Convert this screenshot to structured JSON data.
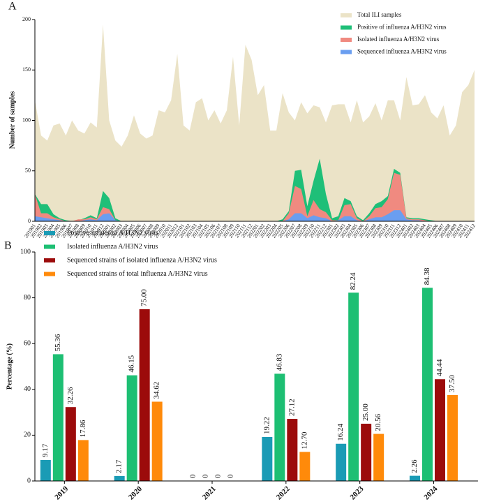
{
  "chart_data": [
    {
      "type": "area",
      "panel_label": "A",
      "y_label": "Number of samples",
      "categories": [
        "201901",
        "201902",
        "201903",
        "201904",
        "201905",
        "201906",
        "201907",
        "201908",
        "201909",
        "201910",
        "201911",
        "201912",
        "202001",
        "202002",
        "202003",
        "202004",
        "202005",
        "202006",
        "202007",
        "202008",
        "202009",
        "202010",
        "202011",
        "202012",
        "202101",
        "202102",
        "202103",
        "202104",
        "202105",
        "202106",
        "202107",
        "202108",
        "202109",
        "202110",
        "202111",
        "202112",
        "202201",
        "202202",
        "202203",
        "202204",
        "202205",
        "202206",
        "202207",
        "202208",
        "202209",
        "202210",
        "202211",
        "202212",
        "202301",
        "202302",
        "202303",
        "202304",
        "202305",
        "202306",
        "202307",
        "202308",
        "202309",
        "202310",
        "202311",
        "202312",
        "202401",
        "202402",
        "202403",
        "202404",
        "202405",
        "202406",
        "202407",
        "202408",
        "202409",
        "202410",
        "202411",
        "202412"
      ],
      "series": [
        {
          "name": "Total ILI samples",
          "color": "#ebe3c7",
          "values": [
            120,
            85,
            80,
            95,
            97,
            85,
            100,
            90,
            87,
            98,
            93,
            195,
            100,
            80,
            74,
            85,
            105,
            87,
            82,
            85,
            110,
            108,
            120,
            166,
            95,
            90,
            118,
            122,
            100,
            110,
            97,
            110,
            163,
            95,
            175,
            160,
            125,
            135,
            90,
            90,
            127,
            108,
            100,
            118,
            107,
            115,
            113,
            98,
            115,
            116,
            116,
            98,
            120,
            98,
            104,
            117,
            100,
            120,
            120,
            100,
            143,
            115,
            116,
            125,
            108,
            102,
            115,
            85,
            95,
            128,
            135,
            150
          ]
        },
        {
          "name": "Positive of influenza A/H3N2 virus",
          "color": "#1fbf78",
          "values": [
            27,
            17,
            17,
            7,
            3,
            1,
            0,
            1,
            3,
            6,
            3,
            30,
            23,
            3,
            0,
            0,
            0,
            0,
            0,
            0,
            0,
            0,
            0,
            0,
            0,
            0,
            0,
            0,
            0,
            0,
            0,
            0,
            0,
            0,
            0,
            0,
            0,
            0,
            0,
            0,
            2,
            10,
            50,
            51,
            15,
            40,
            62,
            27,
            3,
            5,
            23,
            20,
            5,
            1,
            8,
            17,
            20,
            25,
            52,
            48,
            4,
            3,
            3,
            2,
            1,
            0,
            0,
            0,
            0,
            0,
            0,
            0
          ]
        },
        {
          "name": "Isolated influenza A/H3N2 virus",
          "color": "#f08a80",
          "values": [
            27,
            8,
            8,
            4,
            2,
            0,
            0,
            2,
            2,
            4,
            2,
            14,
            12,
            1,
            0,
            0,
            0,
            0,
            0,
            0,
            0,
            0,
            0,
            0,
            0,
            0,
            0,
            0,
            0,
            0,
            0,
            0,
            0,
            0,
            0,
            0,
            0,
            0,
            0,
            0,
            0,
            8,
            35,
            32,
            5,
            21,
            12,
            9,
            1,
            1,
            16,
            17,
            3,
            0,
            5,
            13,
            14,
            22,
            48,
            46,
            3,
            2,
            2,
            1,
            0,
            0,
            0,
            0,
            0,
            0,
            0,
            0
          ]
        },
        {
          "name": "Sequenced influenza A/H3N2 virus",
          "color": "#6a9ef0",
          "values": [
            5,
            4,
            3,
            2,
            1,
            0,
            0,
            0,
            1,
            2,
            1,
            7,
            8,
            1,
            0,
            0,
            0,
            0,
            0,
            0,
            0,
            0,
            0,
            0,
            0,
            0,
            0,
            0,
            0,
            0,
            0,
            0,
            0,
            0,
            0,
            0,
            0,
            0,
            0,
            0,
            0,
            2,
            8,
            8,
            3,
            6,
            4,
            3,
            0,
            1,
            5,
            5,
            1,
            0,
            2,
            4,
            4,
            7,
            11,
            11,
            2,
            1,
            1,
            0,
            0,
            0,
            0,
            0,
            0,
            0,
            0,
            0
          ]
        }
      ],
      "ylim": [
        0,
        200
      ],
      "yticks": [
        0,
        50,
        100,
        150,
        200
      ],
      "legend": "upper right"
    },
    {
      "type": "bar",
      "panel_label": "B",
      "y_label": "Percentage (%)",
      "categories": [
        "2019",
        "2020",
        "2021",
        "2022",
        "2023",
        "2024"
      ],
      "series": [
        {
          "name": "Positive influenza A/H3N2 virus",
          "color": "#1a9bb5",
          "values": [
            9.17,
            2.17,
            0,
            19.22,
            16.24,
            2.26
          ],
          "value_labels": [
            "9.17",
            "2.17",
            "0",
            "19.22",
            "16.24",
            "2.26"
          ]
        },
        {
          "name": "Isolated influenza A/H3N2 virus",
          "color": "#1dbf73",
          "values": [
            55.36,
            46.15,
            0,
            46.83,
            82.24,
            84.38
          ],
          "value_labels": [
            "55.36",
            "46.15",
            "0",
            "46.83",
            "82.24",
            "84.38"
          ]
        },
        {
          "name": "Sequenced strains of isolated influenza A/H3N2 virus",
          "color": "#9c0b0b",
          "values": [
            32.26,
            75,
            0,
            27.12,
            25,
            44.44
          ],
          "value_labels": [
            "32.26",
            "75.00",
            "0",
            "27.12",
            "25.00",
            "44.44"
          ]
        },
        {
          "name": "Sequenced strains of total influenza A/H3N2 virus",
          "color": "#ff8a0a",
          "values": [
            17.86,
            34.62,
            0,
            12.7,
            20.56,
            37.5
          ],
          "value_labels": [
            "17.86",
            "34.62",
            "0",
            "12.70",
            "20.56",
            "37.50"
          ]
        }
      ],
      "ylim": [
        0,
        100
      ],
      "yticks": [
        0,
        20,
        40,
        60,
        80,
        100
      ],
      "legend": "upper left"
    }
  ]
}
